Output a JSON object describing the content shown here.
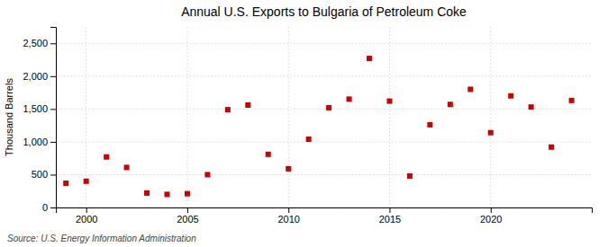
{
  "chart_data": {
    "type": "scatter",
    "title": "Annual U.S. Exports to Bulgaria of Petroleum Coke",
    "ylabel": "Thousand Barrels",
    "annotations": [
      "Source: U.S. Energy Information Administration"
    ],
    "x": [
      1999,
      2000,
      2001,
      2002,
      2003,
      2004,
      2005,
      2006,
      2007,
      2008,
      2009,
      2010,
      2011,
      2012,
      2013,
      2014,
      2015,
      2016,
      2017,
      2018,
      2019,
      2020,
      2021,
      2022,
      2023,
      2024
    ],
    "values": [
      370,
      400,
      770,
      610,
      220,
      200,
      210,
      500,
      1490,
      1560,
      810,
      590,
      1040,
      1520,
      1650,
      2270,
      1620,
      480,
      1260,
      1570,
      1800,
      1140,
      1700,
      1530,
      920,
      1630
    ],
    "color": "#cc0000",
    "marker": "square",
    "xlim": [
      1998.5,
      2025
    ],
    "xticks": [
      2000,
      2005,
      2010,
      2015,
      2020
    ],
    "ylim": [
      0,
      2750
    ],
    "yticks": [
      0,
      500,
      {
        "value": 1000,
        "label": "1,000"
      },
      {
        "value": 1500,
        "label": "1,500"
      },
      {
        "value": 2000,
        "label": "2,000"
      },
      {
        "value": 2500,
        "label": "2,500"
      }
    ],
    "grid": true
  }
}
